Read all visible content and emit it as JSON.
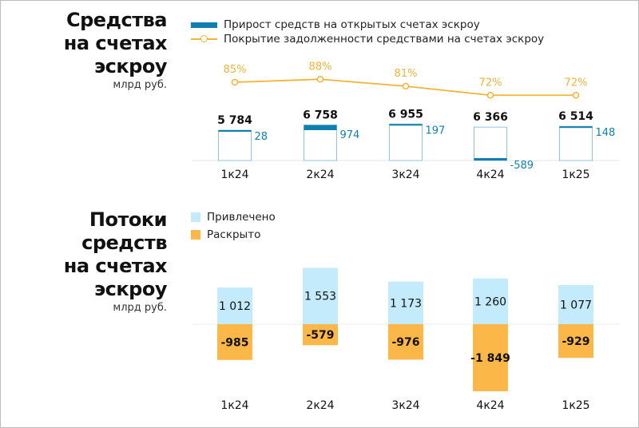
{
  "colors": {
    "bar_blue": "#0f7fb0",
    "line": "#f5b335",
    "inflow": "#c3ebfb",
    "outflow": "#fbb848",
    "outline": "#8fc4de"
  },
  "chart_data": [
    {
      "type": "bar",
      "title": "Средства на счетах эскроу",
      "unit": "млрд руб.",
      "title_lines": [
        "Средства",
        "на счетах",
        "эскроу"
      ],
      "categories": [
        "1к24",
        "2к24",
        "3к24",
        "4к24",
        "1к25"
      ],
      "series": [
        {
          "name": "Средства на счетах эскроу",
          "values": [
            5784,
            6758,
            6955,
            6366,
            6514
          ],
          "labels": [
            "5 784",
            "6 758",
            "6 955",
            "6 366",
            "6 514"
          ]
        },
        {
          "name": "Прирост средств на открытых счетах эскроу",
          "values": [
            28,
            974,
            197,
            -589,
            148
          ],
          "labels": [
            "28",
            "974",
            "197",
            "-589",
            "148"
          ]
        },
        {
          "name": "Покрытие задолженности средствами на счетах эскроу",
          "type": "line",
          "values": [
            85,
            88,
            81,
            72,
            72
          ],
          "labels": [
            "85%",
            "88%",
            "81%",
            "72%",
            "72%"
          ]
        }
      ],
      "legend": [
        "Прирост средств на открытых счетах эскроу",
        "Покрытие задолженности средствами на счетах эскроу"
      ],
      "legend_position": "top"
    },
    {
      "type": "bar",
      "title": "Потоки средств на счетах эскроу",
      "unit": "млрд руб.",
      "title_lines": [
        "Потоки средств",
        "на счетах",
        "эскроу"
      ],
      "categories": [
        "1к24",
        "2к24",
        "3к24",
        "4к24",
        "1к25"
      ],
      "series": [
        {
          "name": "Привлечено",
          "values": [
            1012,
            1553,
            1173,
            1260,
            1077
          ],
          "labels": [
            "1 012",
            "1 553",
            "1 173",
            "1 260",
            "1 077"
          ]
        },
        {
          "name": "Раскрыто",
          "values": [
            -985,
            -579,
            -976,
            -1849,
            -929
          ],
          "labels": [
            "-985",
            "-579",
            "-976",
            "-1 849",
            "-929"
          ]
        }
      ],
      "legend": [
        "Привлечено",
        "Раскрыто"
      ],
      "legend_position": "top-left"
    }
  ]
}
